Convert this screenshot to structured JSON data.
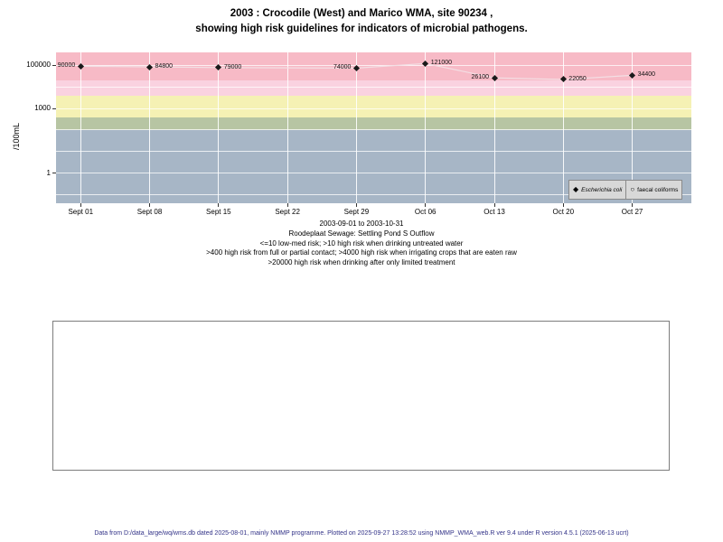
{
  "title": {
    "line1": "2003 : Crocodile (West) and Marico WMA, site 90234 ,",
    "line2": "showing high risk guidelines for indicators of microbial pathogens."
  },
  "chart_data": {
    "type": "scatter",
    "title": "2003 : Crocodile (West) and Marico WMA, site 90234, showing high risk guidelines for indicators of microbial pathogens.",
    "ylabel": "/100mL",
    "xlabel": "",
    "y_scale": "log10",
    "ylim_log": [
      -1.4,
      5.6
    ],
    "xlim_days": [
      -2.5,
      62
    ],
    "y_ticks": [
      {
        "value": 100000,
        "label": "100000"
      },
      {
        "value": 1000,
        "label": "1000"
      },
      {
        "value": 1,
        "label": "1"
      }
    ],
    "x_ticks": [
      {
        "day": 0,
        "label": "Sept 01"
      },
      {
        "day": 7,
        "label": "Sept 08"
      },
      {
        "day": 14,
        "label": "Sept 15"
      },
      {
        "day": 21,
        "label": "Sept 22"
      },
      {
        "day": 28,
        "label": "Sept 29"
      },
      {
        "day": 35,
        "label": "Oct 06"
      },
      {
        "day": 42,
        "label": "Oct 13"
      },
      {
        "day": 49,
        "label": "Oct 20"
      },
      {
        "day": 56,
        "label": "Oct 27"
      }
    ],
    "risk_bands": [
      {
        "name": "high-risk-limited-treatment-gt20000",
        "from": 20000,
        "to": 398000,
        "color": "#f7bac6"
      },
      {
        "name": "high-risk-irrigation-gt4000",
        "from": 4000,
        "to": 20000,
        "color": "#fad2e0"
      },
      {
        "name": "high-risk-contact-gt400",
        "from": 400,
        "to": 4000,
        "color": "#f5f1b4"
      },
      {
        "name": "moderate-100-400",
        "from": 100,
        "to": 400,
        "color": "#b7c5a3"
      },
      {
        "name": "low-med-risk",
        "from": 0.04,
        "to": 100,
        "color": "#a7b6c6"
      }
    ],
    "grid_decades": [
      5,
      4,
      3,
      2,
      1,
      0,
      -1
    ],
    "series": [
      {
        "name": "Escherichia coli",
        "marker": "diamond",
        "color": "#000000",
        "line_color": "#f3dfe4",
        "points": [
          {
            "day": 0,
            "value": 90000,
            "label": "90000",
            "label_side": "left"
          },
          {
            "day": 7,
            "value": 84800,
            "label": "84800",
            "label_side": "right"
          },
          {
            "day": 14,
            "value": 79000,
            "label": "79000",
            "label_side": "right"
          },
          {
            "day": 28,
            "value": 74000,
            "label": "74000",
            "label_side": "left"
          },
          {
            "day": 35,
            "value": 121000,
            "label": "121000",
            "label_side": "right"
          },
          {
            "day": 42,
            "value": 26100,
            "label": "26100",
            "label_side": "left"
          },
          {
            "day": 49,
            "value": 22050,
            "label": "22050",
            "label_side": "right"
          },
          {
            "day": 56,
            "value": 34400,
            "label": "34400",
            "label_side": "right"
          }
        ]
      },
      {
        "name": "faecal coliforms",
        "marker": "circle",
        "color": "#ffffff",
        "points": []
      }
    ]
  },
  "legend": {
    "items": [
      {
        "label": "Escherichia coli",
        "marker": "diamond",
        "italic": true
      },
      {
        "label": "faecal coliforms",
        "marker": "circle",
        "italic": false
      }
    ]
  },
  "captions": [
    "2003-09-01 to 2003-10-31",
    "Roodeplaat Sewage: Settling Pond S Outflow",
    "<=10 low-med risk; >10 high risk when drinking untreated water",
    ">400 high risk from full or partial contact; >4000 high risk when irrigating crops that are eaten raw",
    ">20000 high risk when drinking after only limited treatment"
  ],
  "footer": "Data from D:/data_large/wq/wms.db dated 2025-08-01, mainly NMMP programme. Plotted on 2025-09-27 13:28:52 using NMMP_WMA_web.R ver 9.4 under R version 4.5.1 (2025-06-13 ucrt)"
}
